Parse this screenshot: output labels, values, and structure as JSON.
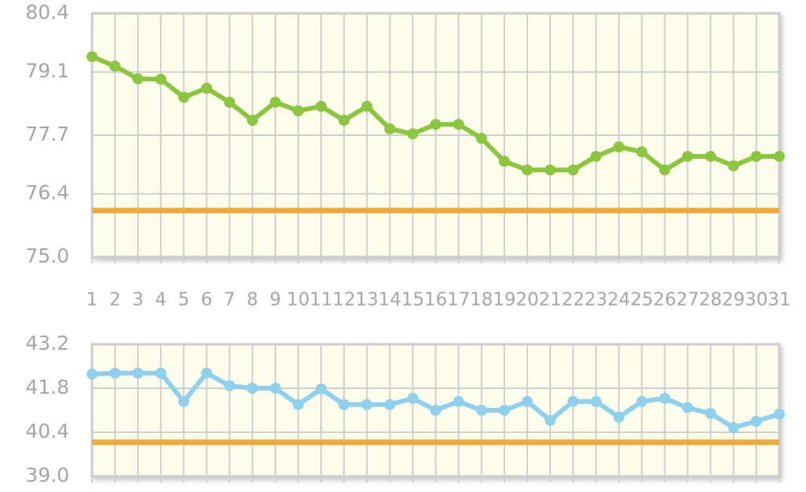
{
  "chart_data": [
    {
      "type": "line",
      "categories": [
        "1",
        "2",
        "3",
        "4",
        "5",
        "6",
        "7",
        "8",
        "9",
        "10",
        "11",
        "12",
        "13",
        "14",
        "15",
        "16",
        "17",
        "18",
        "19",
        "20",
        "21",
        "22",
        "23",
        "24",
        "25",
        "26",
        "27",
        "28",
        "29",
        "30",
        "31"
      ],
      "series": [
        {
          "color": "#8cc63f",
          "values": [
            79.44,
            79.23,
            78.95,
            78.94,
            78.54,
            78.74,
            78.43,
            78.03,
            78.43,
            78.24,
            78.34,
            78.03,
            78.34,
            77.84,
            77.73,
            77.94,
            77.94,
            77.63,
            77.12,
            76.93,
            76.93,
            76.93,
            77.23,
            77.44,
            77.33,
            76.93,
            77.23,
            77.23,
            77.02,
            77.23,
            77.23
          ]
        }
      ],
      "reference_line": {
        "value": 76.03,
        "color": "#f2a93b"
      },
      "ylim": [
        75.0,
        80.4
      ],
      "yticks": [
        {
          "value": 75.0,
          "label": "75.0"
        },
        76.4,
        77.7,
        79.1,
        80.4
      ],
      "grid": true
    },
    {
      "type": "line",
      "categories": [
        null,
        null,
        null,
        null,
        null,
        null,
        null,
        null,
        null,
        null,
        null,
        null,
        null,
        null,
        null,
        null,
        null,
        null,
        null,
        null,
        null,
        null,
        null,
        null,
        null,
        null,
        null,
        null,
        null,
        null,
        null
      ],
      "series": [
        {
          "color": "#8fd0ec",
          "values": [
            42.25,
            42.28,
            42.28,
            42.28,
            41.38,
            42.28,
            41.88,
            41.8,
            41.8,
            41.28,
            41.78,
            41.28,
            41.28,
            41.28,
            41.48,
            41.1,
            41.38,
            41.1,
            41.1,
            41.38,
            40.78,
            41.38,
            41.38,
            40.88,
            41.38,
            41.48,
            41.18,
            41.0,
            40.55,
            40.75,
            40.98
          ]
        }
      ],
      "reference_line": {
        "value": 40.08,
        "color": "#f2a93b"
      },
      "ylim": [
        39.0,
        43.2
      ],
      "yticks": [
        {
          "value": 39.0,
          "label": "39.0"
        },
        40.4,
        41.8,
        43.2
      ],
      "grid": true
    }
  ]
}
